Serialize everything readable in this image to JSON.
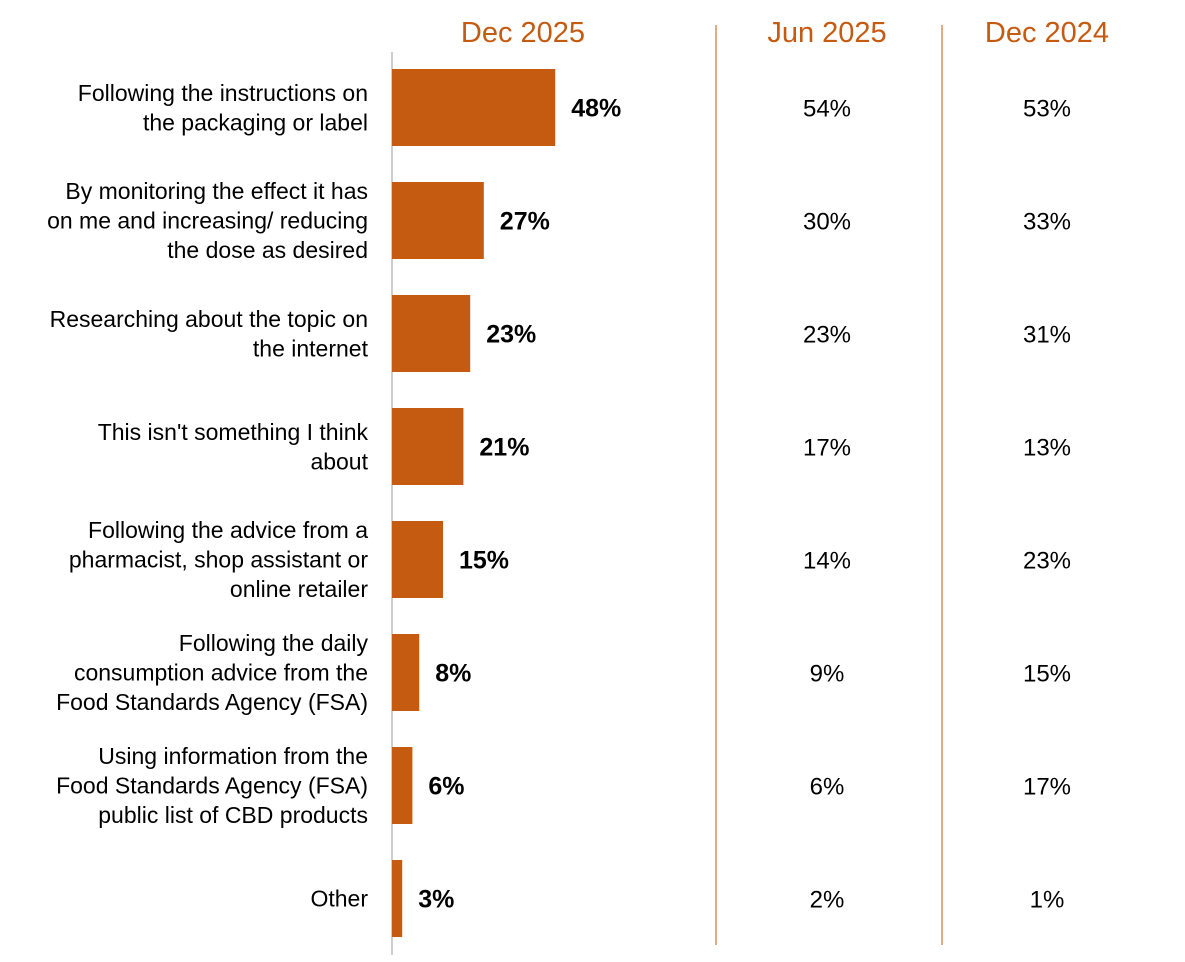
{
  "chart_data": {
    "type": "bar",
    "orientation": "horizontal",
    "title": "",
    "xlabel": "",
    "ylabel": "",
    "xlim": [
      0,
      100
    ],
    "grid": false,
    "legend": "none",
    "categories": [
      [
        "Following the instructions on",
        "the packaging or label"
      ],
      [
        "By monitoring the effect it has",
        "on me and increasing/ reducing",
        "the dose as desired"
      ],
      [
        "Researching about the topic on",
        "the internet"
      ],
      [
        "This isn't something I think",
        "about"
      ],
      [
        "Following the advice from a",
        "pharmacist, shop assistant or",
        "online retailer"
      ],
      [
        "Following the daily",
        "consumption advice from the",
        "Food Standards Agency (FSA)"
      ],
      [
        "Using information from the",
        "Food Standards Agency (FSA)",
        "public list of CBD products"
      ],
      [
        "Other"
      ]
    ],
    "series": [
      {
        "name": "Dec 2025",
        "values": [
          48,
          27,
          23,
          21,
          15,
          8,
          6,
          3
        ],
        "labels": [
          "48%",
          "27%",
          "23%",
          "21%",
          "15%",
          "8%",
          "6%",
          "3%"
        ],
        "color": "#c55a11"
      }
    ],
    "comparison_columns": [
      {
        "name": "Jun 2025",
        "values": [
          54,
          30,
          23,
          17,
          14,
          9,
          6,
          2
        ],
        "labels": [
          "54%",
          "30%",
          "23%",
          "17%",
          "14%",
          "9%",
          "6%",
          "2%"
        ]
      },
      {
        "name": "Dec 2024",
        "values": [
          53,
          33,
          31,
          13,
          23,
          15,
          17,
          1
        ],
        "labels": [
          "53%",
          "33%",
          "31%",
          "13%",
          "23%",
          "15%",
          "17%",
          "1%"
        ]
      }
    ],
    "colors": {
      "bar": "#c55a11",
      "header": "#c55a11",
      "divider": "#c55a11",
      "axis": "#9e9e9e"
    }
  }
}
